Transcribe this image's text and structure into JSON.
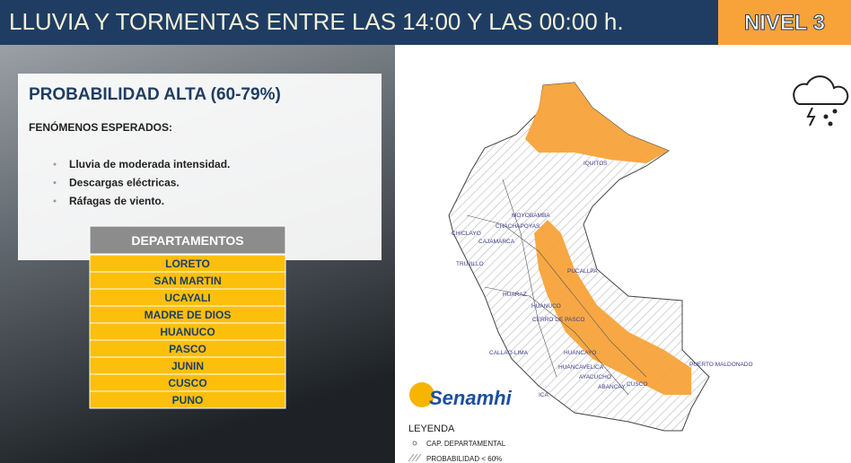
{
  "header": {
    "title": "LLUVIA Y TORMENTAS ENTRE LAS 14:00 Y LAS 00:00 h.",
    "level": "NIVEL 3"
  },
  "panel": {
    "probability": "PROBABILIDAD  ALTA (60-79%)",
    "phenomena_title": "FENÓMENOS ESPERADOS:",
    "phenomena": [
      "Lluvia de moderada intensidad.",
      "Descargas eléctricas.",
      "Ráfagas de viento."
    ],
    "table": {
      "header": "DEPARTAMENTOS",
      "rows": [
        "LORETO",
        "SAN MARTIN",
        "UCAYALI",
        "MADRE DE DIOS",
        "HUANUCO",
        "PASCO",
        "JUNIN",
        "CUSCO",
        "PUNO"
      ]
    }
  },
  "map": {
    "labels": [
      "IQUITOS",
      "MOYOBAMBA",
      "CHACHAPOYAS",
      "CAJAMARCA",
      "CHICLAYO",
      "TRUJILLO",
      "PUCALLPA",
      "HUARAZ",
      "HUANUCO",
      "CERRO DE PASCO",
      "CALLAO-LIMA",
      "HUANCAYO",
      "HUANCAVELICA",
      "AYACUCHO",
      "ABANCAY",
      "CUSCO",
      "ICA",
      "PUERTO MALDONADO"
    ],
    "logo": "Senamhi",
    "legend": {
      "title": "LEYENDA",
      "items": [
        "CAP. DEPARTAMENTAL",
        "PROBABILIDAD < 60%"
      ]
    }
  }
}
